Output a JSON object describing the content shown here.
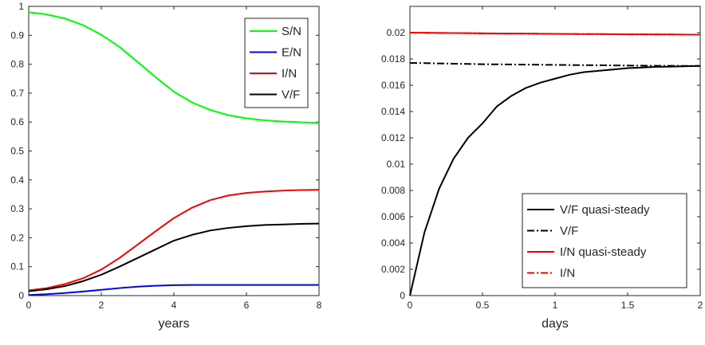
{
  "chart_data": [
    {
      "type": "line",
      "xlabel": "years",
      "ylabel": "",
      "xlim": [
        0,
        8
      ],
      "ylim": [
        0,
        1
      ],
      "xticks": [
        "0",
        "2",
        "4",
        "6",
        "8"
      ],
      "yticks": [
        "0",
        "0.1",
        "0.2",
        "0.3",
        "0.4",
        "0.5",
        "0.6",
        "0.7",
        "0.8",
        "0.9",
        "1"
      ],
      "grid": false,
      "legend_position": "top-right",
      "x": [
        0,
        0.5,
        1,
        1.5,
        2,
        2.5,
        3,
        3.5,
        4,
        4.5,
        5,
        5.5,
        6,
        6.5,
        7,
        7.5,
        8
      ],
      "series": [
        {
          "name": "S/N",
          "color": "#00ff00",
          "style": "solid",
          "values": [
            0.98,
            0.972,
            0.958,
            0.935,
            0.902,
            0.86,
            0.808,
            0.755,
            0.705,
            0.668,
            0.642,
            0.624,
            0.613,
            0.606,
            0.602,
            0.599,
            0.597
          ]
        },
        {
          "name": "E/N",
          "color": "#0000ff",
          "style": "solid",
          "values": [
            0.002,
            0.005,
            0.009,
            0.014,
            0.02,
            0.026,
            0.031,
            0.034,
            0.036,
            0.037,
            0.037,
            0.037,
            0.037,
            0.037,
            0.037,
            0.037,
            0.037
          ]
        },
        {
          "name": "I/N",
          "color": "#ff0000",
          "style": "solid",
          "values": [
            0.018,
            0.026,
            0.04,
            0.06,
            0.09,
            0.13,
            0.176,
            0.223,
            0.268,
            0.304,
            0.33,
            0.346,
            0.355,
            0.36,
            0.363,
            0.365,
            0.366
          ]
        },
        {
          "name": "V/F",
          "color": "#000000",
          "style": "solid",
          "values": [
            0.015,
            0.022,
            0.033,
            0.05,
            0.072,
            0.1,
            0.13,
            0.16,
            0.19,
            0.21,
            0.225,
            0.234,
            0.24,
            0.244,
            0.246,
            0.248,
            0.249
          ]
        }
      ]
    },
    {
      "type": "line",
      "xlabel": "days",
      "ylabel": "",
      "xlim": [
        0,
        2
      ],
      "ylim": [
        0,
        0.022
      ],
      "xticks": [
        "0",
        "0.5",
        "1",
        "1.5",
        "2"
      ],
      "yticks": [
        "0",
        "0.002",
        "0.004",
        "0.006",
        "0.008",
        "0.01",
        "0.012",
        "0.014",
        "0.016",
        "0.018",
        "0.02"
      ],
      "grid": false,
      "legend_position": "bottom-right",
      "x": [
        0,
        0.1,
        0.2,
        0.3,
        0.4,
        0.5,
        0.6,
        0.7,
        0.8,
        0.9,
        1,
        1.1,
        1.2,
        1.3,
        1.4,
        1.5,
        1.6,
        1.7,
        1.8,
        1.9,
        2
      ],
      "series": [
        {
          "name": "V/F quasi-steady",
          "color": "#000000",
          "style": "solid",
          "values": [
            0,
            0.0048,
            0.0081,
            0.0104,
            0.012,
            0.0131,
            0.0144,
            0.0152,
            0.0158,
            0.0162,
            0.0165,
            0.0168,
            0.017,
            0.0171,
            0.0172,
            0.0173,
            0.01735,
            0.0174,
            0.01742,
            0.01745,
            0.01747
          ]
        },
        {
          "name": "V/F",
          "color": "#000000",
          "style": "dashdot",
          "values": [
            0.0177,
            0.01768,
            0.01766,
            0.01764,
            0.01762,
            0.0176,
            0.01759,
            0.01758,
            0.01757,
            0.01756,
            0.01755,
            0.01754,
            0.01753,
            0.01752,
            0.01751,
            0.0175,
            0.01749,
            0.01748,
            0.01748,
            0.01747,
            0.01747
          ]
        },
        {
          "name": "I/N quasi-steady",
          "color": "#ff0000",
          "style": "solid",
          "values": [
            0.02,
            0.01999,
            0.01998,
            0.01997,
            0.01996,
            0.01995,
            0.01994,
            0.01993,
            0.01993,
            0.01992,
            0.01991,
            0.0199,
            0.01989,
            0.01989,
            0.01988,
            0.01987,
            0.01987,
            0.01986,
            0.01986,
            0.01985,
            0.01985
          ]
        },
        {
          "name": "I/N",
          "color": "#ff0000",
          "style": "dashdot",
          "values": [
            0.02,
            0.01999,
            0.01998,
            0.01997,
            0.01996,
            0.01995,
            0.01994,
            0.01993,
            0.01993,
            0.01992,
            0.01991,
            0.0199,
            0.01989,
            0.01989,
            0.01988,
            0.01987,
            0.01987,
            0.01986,
            0.01986,
            0.01985,
            0.01985
          ]
        }
      ]
    }
  ]
}
